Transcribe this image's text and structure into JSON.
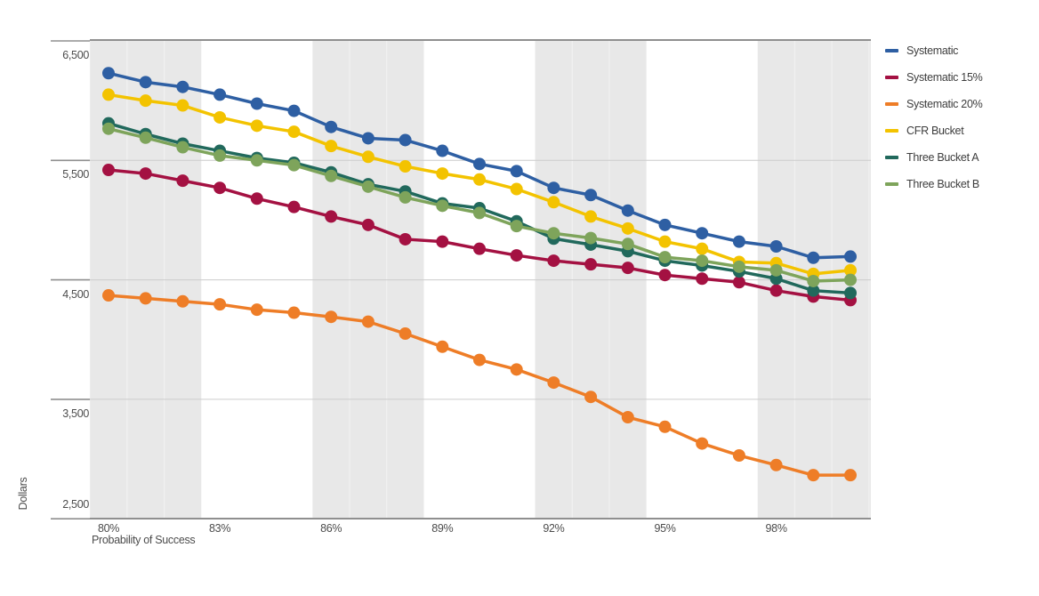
{
  "chart_data": {
    "type": "line",
    "xlabel": "Probability of Success",
    "ylabel": "Dollars",
    "grid": "horizontal",
    "legend_position": "right",
    "xlim": [
      79.5,
      100.55
    ],
    "ylim": [
      2500,
      6500
    ],
    "x": [
      80,
      81,
      82,
      83,
      84,
      85,
      86,
      87,
      88,
      89,
      90,
      91,
      92,
      93,
      94,
      95,
      96,
      97,
      98,
      99,
      100
    ],
    "x_tick_values": [
      80,
      83,
      86,
      89,
      92,
      95,
      98
    ],
    "x_tick_labels": [
      "80%",
      "83%",
      "86%",
      "89%",
      "92%",
      "95%",
      "98%"
    ],
    "y_tick_values": [
      6500,
      5500,
      4500,
      3500,
      2500
    ],
    "y_tick_labels": [
      "6,500",
      "5,500",
      "4,500",
      "3,500",
      "2,500"
    ],
    "shaded_bands": [
      [
        79.5,
        82.5
      ],
      [
        85.5,
        88.5
      ],
      [
        91.5,
        94.5
      ],
      [
        97.5,
        100.55
      ]
    ],
    "colors": {
      "band": "#e8e8e8",
      "band_divider": "#f1f1f1",
      "gridline": "#cccccc",
      "axis_line": "#8f8f8f",
      "tick_text": "#4c4c4c",
      "legend_text": "#3d3d3d"
    },
    "series": [
      {
        "name": "Systematic",
        "color": "#2e5fa3",
        "values": [
          6230,
          6155,
          6115,
          6050,
          5975,
          5915,
          5780,
          5685,
          5670,
          5580,
          5470,
          5410,
          5270,
          5210,
          5080,
          4960,
          4890,
          4820,
          4780,
          4685,
          4695
        ]
      },
      {
        "name": "Systematic 15%",
        "color": "#a41142",
        "values": [
          5420,
          5390,
          5330,
          5270,
          5180,
          5110,
          5030,
          4960,
          4840,
          4820,
          4760,
          4705,
          4660,
          4630,
          4600,
          4540,
          4510,
          4480,
          4410,
          4360,
          4330
        ]
      },
      {
        "name": "Systematic 20%",
        "color": "#ee7d27",
        "values": [
          4370,
          4345,
          4320,
          4295,
          4250,
          4225,
          4190,
          4150,
          4050,
          3940,
          3830,
          3750,
          3640,
          3520,
          3350,
          3270,
          3130,
          3030,
          2950,
          2865,
          2865
        ]
      },
      {
        "name": "CFR Bucket",
        "color": "#f3c300",
        "values": [
          6050,
          6000,
          5960,
          5860,
          5790,
          5740,
          5620,
          5530,
          5450,
          5390,
          5340,
          5260,
          5150,
          5030,
          4930,
          4820,
          4760,
          4650,
          4640,
          4550,
          4580
        ]
      },
      {
        "name": "Three Bucket A",
        "color": "#21695c",
        "values": [
          5810,
          5720,
          5640,
          5580,
          5520,
          5480,
          5400,
          5300,
          5240,
          5140,
          5100,
          4990,
          4845,
          4795,
          4740,
          4660,
          4620,
          4570,
          4510,
          4410,
          4390
        ]
      },
      {
        "name": "Three Bucket B",
        "color": "#7ea45b",
        "values": [
          5765,
          5690,
          5610,
          5540,
          5500,
          5460,
          5370,
          5280,
          5190,
          5120,
          5060,
          4950,
          4890,
          4850,
          4800,
          4690,
          4660,
          4610,
          4580,
          4490,
          4500
        ]
      }
    ]
  }
}
